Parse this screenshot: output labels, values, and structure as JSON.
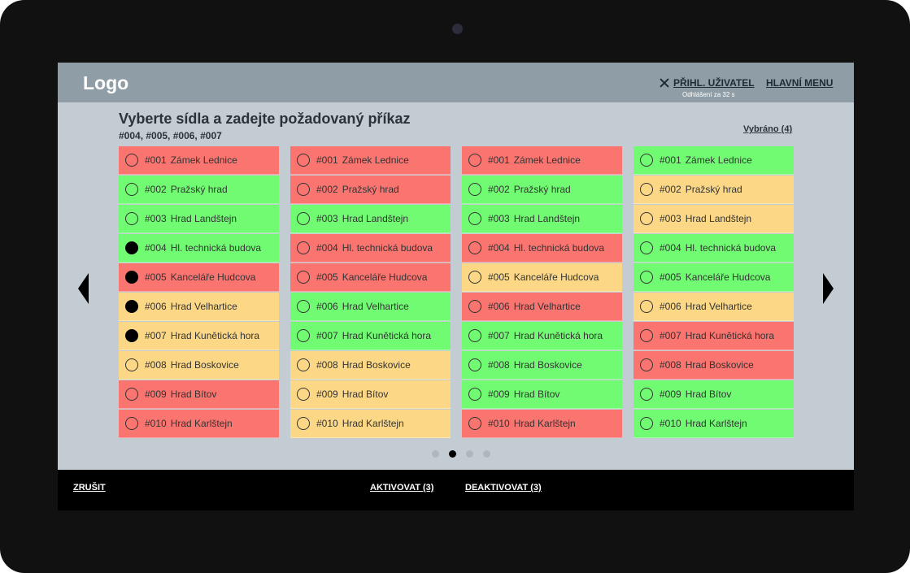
{
  "header": {
    "logo": "Logo",
    "user_link": "PŘIHL. UŽIVATEL",
    "logout_timer": "Odhlášení za 32 s",
    "main_menu": "HLAVNÍ MENU"
  },
  "main": {
    "title": "Vyberte sídla a zadejte požadovaný příkaz",
    "selected_codes": "#004, #005, #006, #007",
    "selected_count": "Vybráno (4)"
  },
  "columns": [
    {
      "rows": [
        {
          "code": "#001",
          "name": "Zámek Lednice",
          "status": "red",
          "checked": false
        },
        {
          "code": "#002",
          "name": "Pražský hrad",
          "status": "green",
          "checked": false
        },
        {
          "code": "#003",
          "name": "Hrad Landštejn",
          "status": "green",
          "checked": false
        },
        {
          "code": "#004",
          "name": "Hl. technická budova",
          "status": "green",
          "checked": true
        },
        {
          "code": "#005",
          "name": "Kanceláře Hudcova",
          "status": "red",
          "checked": true
        },
        {
          "code": "#006",
          "name": "Hrad Velhartice",
          "status": "yellow",
          "checked": true
        },
        {
          "code": "#007",
          "name": "Hrad Kunětická hora",
          "status": "yellow",
          "checked": true
        },
        {
          "code": "#008",
          "name": "Hrad Boskovice",
          "status": "yellow",
          "checked": false
        },
        {
          "code": "#009",
          "name": "Hrad Bítov",
          "status": "red",
          "checked": false
        },
        {
          "code": "#010",
          "name": "Hrad Karlštejn",
          "status": "red",
          "checked": false
        }
      ]
    },
    {
      "rows": [
        {
          "code": "#001",
          "name": "Zámek Lednice",
          "status": "red",
          "checked": false
        },
        {
          "code": "#002",
          "name": "Pražský hrad",
          "status": "red",
          "checked": false
        },
        {
          "code": "#003",
          "name": "Hrad Landštejn",
          "status": "green",
          "checked": false
        },
        {
          "code": "#004",
          "name": "Hl. technická budova",
          "status": "red",
          "checked": false
        },
        {
          "code": "#005",
          "name": "Kanceláře Hudcova",
          "status": "red",
          "checked": false
        },
        {
          "code": "#006",
          "name": "Hrad Velhartice",
          "status": "green",
          "checked": false
        },
        {
          "code": "#007",
          "name": "Hrad Kunětická hora",
          "status": "green",
          "checked": false
        },
        {
          "code": "#008",
          "name": "Hrad Boskovice",
          "status": "yellow",
          "checked": false
        },
        {
          "code": "#009",
          "name": "Hrad Bítov",
          "status": "yellow",
          "checked": false
        },
        {
          "code": "#010",
          "name": "Hrad Karlštejn",
          "status": "yellow",
          "checked": false
        }
      ]
    },
    {
      "rows": [
        {
          "code": "#001",
          "name": "Zámek Lednice",
          "status": "red",
          "checked": false
        },
        {
          "code": "#002",
          "name": "Pražský hrad",
          "status": "green",
          "checked": false
        },
        {
          "code": "#003",
          "name": "Hrad Landštejn",
          "status": "green",
          "checked": false
        },
        {
          "code": "#004",
          "name": "Hl. technická budova",
          "status": "red",
          "checked": false
        },
        {
          "code": "#005",
          "name": "Kanceláře Hudcova",
          "status": "yellow",
          "checked": false
        },
        {
          "code": "#006",
          "name": "Hrad Velhartice",
          "status": "red",
          "checked": false
        },
        {
          "code": "#007",
          "name": "Hrad Kunětická hora",
          "status": "green",
          "checked": false
        },
        {
          "code": "#008",
          "name": "Hrad Boskovice",
          "status": "green",
          "checked": false
        },
        {
          "code": "#009",
          "name": "Hrad Bítov",
          "status": "green",
          "checked": false
        },
        {
          "code": "#010",
          "name": "Hrad Karlštejn",
          "status": "red",
          "checked": false
        }
      ]
    },
    {
      "rows": [
        {
          "code": "#001",
          "name": "Zámek Lednice",
          "status": "green",
          "checked": false
        },
        {
          "code": "#002",
          "name": "Pražský hrad",
          "status": "yellow",
          "checked": false
        },
        {
          "code": "#003",
          "name": "Hrad Landštejn",
          "status": "yellow",
          "checked": false
        },
        {
          "code": "#004",
          "name": "Hl. technická budova",
          "status": "green",
          "checked": false
        },
        {
          "code": "#005",
          "name": "Kanceláře Hudcova",
          "status": "green",
          "checked": false
        },
        {
          "code": "#006",
          "name": "Hrad Velhartice",
          "status": "yellow",
          "checked": false
        },
        {
          "code": "#007",
          "name": "Hrad Kunětická hora",
          "status": "red",
          "checked": false
        },
        {
          "code": "#008",
          "name": "Hrad Boskovice",
          "status": "red",
          "checked": false
        },
        {
          "code": "#009",
          "name": "Hrad Bítov",
          "status": "green",
          "checked": false
        },
        {
          "code": "#010",
          "name": "Hrad Karlštejn",
          "status": "green",
          "checked": false
        }
      ]
    }
  ],
  "pagination": {
    "page_count": 4,
    "active_page": 2
  },
  "footer": {
    "cancel": "ZRUŠIT",
    "activate": "AKTIVOVAT (3)",
    "deactivate": "DEAKTIVOVAT (3)"
  },
  "icons": {
    "close": "close-icon",
    "prev": "chevron-left-icon",
    "next": "chevron-right-icon"
  },
  "colors": {
    "red": "#fa7470",
    "green": "#71fb73",
    "yellow": "#fcd886",
    "header": "#8f9ea6",
    "background": "#c2ccd2"
  }
}
